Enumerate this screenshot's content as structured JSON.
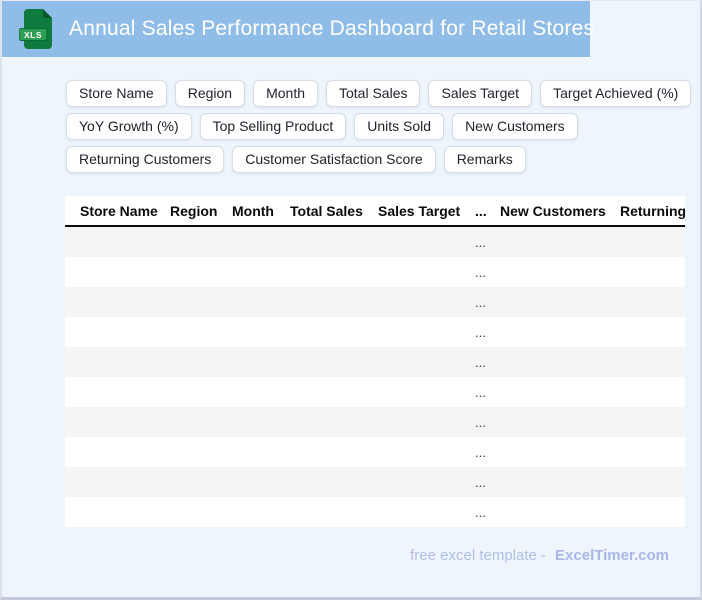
{
  "window": {
    "title": "Annual Sales Performance Dashboard for Retail Stores"
  },
  "header": {
    "file_icon_label": "XLS"
  },
  "chips": [
    "Store Name",
    "Region",
    "Month",
    "Total Sales",
    "Sales Target",
    "Target Achieved (%)",
    "YoY Growth (%)",
    "Top Selling Product",
    "Units Sold",
    "New Customers",
    "Returning Customers",
    "Customer Satisfaction Score",
    "Remarks"
  ],
  "table": {
    "columns": [
      "Store Name",
      "Region",
      "Month",
      "Total Sales",
      "Sales Target",
      "...",
      "New Customers",
      "Returning Customers"
    ],
    "row_count": 10,
    "cell_placeholder": "...",
    "placeholder_column_index": 5
  },
  "footer": {
    "text": "free excel template -",
    "brand": "ExcelTimer.com"
  },
  "colors": {
    "header_bar": "#90BCE8",
    "icon_green": "#0E7A3D",
    "icon_fold_green": "#07582B",
    "icon_band_green": "#2E9E52",
    "row_stripe": "#F5F5F5",
    "table_divider": "#0A0A0A",
    "footer_text": "#B2BDEA",
    "page_background": "#EFF5FD"
  }
}
